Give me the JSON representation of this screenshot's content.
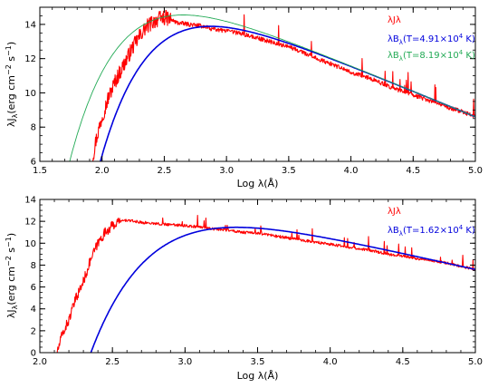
{
  "chart_data": [
    {
      "type": "line",
      "xlabel": "Log λ(Å)",
      "ylabel": "λJ",
      "ylabel_sub": "λ",
      "ylabel_units": "(erg cm",
      "ylabel_units_exp1": "−2",
      "ylabel_units_mid": " s",
      "ylabel_units_exp2": "−1",
      "ylabel_units_end": ")",
      "xlim": [
        1.5,
        5.0
      ],
      "ylim": [
        6,
        15
      ],
      "xticks": [
        1.5,
        2.0,
        2.5,
        3.0,
        3.5,
        4.0,
        4.5,
        5.0
      ],
      "xtick_labels": [
        "1.5",
        "2.0",
        "2.5",
        "3.0",
        "3.5",
        "4.0",
        "4.5",
        "5.0"
      ],
      "yticks": [
        6,
        8,
        10,
        12,
        14
      ],
      "ytick_labels": [
        "6",
        "8",
        "10",
        "12",
        "14"
      ],
      "grid": false,
      "legend_position": "top-right",
      "series": [
        {
          "name": "λJλ",
          "color": "#ff0000",
          "kind": "spectrum",
          "x": [
            1.92,
            1.95,
            2.0,
            2.05,
            2.1,
            2.15,
            2.2,
            2.25,
            2.3,
            2.35,
            2.4,
            2.45,
            2.5,
            2.55,
            2.6,
            2.7,
            2.8,
            2.9,
            3.0,
            3.1,
            3.2,
            3.3,
            3.4,
            3.5,
            3.6,
            3.7,
            3.8,
            3.9,
            4.0,
            4.1,
            4.2,
            4.3,
            4.4,
            4.5,
            4.6,
            4.7,
            4.8,
            4.9,
            5.0
          ],
          "y": [
            6.0,
            7.2,
            8.6,
            9.7,
            10.6,
            11.3,
            12.0,
            12.7,
            13.3,
            13.8,
            14.1,
            14.3,
            14.4,
            14.3,
            14.1,
            14.0,
            13.9,
            13.7,
            13.6,
            13.5,
            13.3,
            13.1,
            12.9,
            12.7,
            12.4,
            12.1,
            11.8,
            11.5,
            11.2,
            11.0,
            10.7,
            10.4,
            10.1,
            9.9,
            9.6,
            9.4,
            9.1,
            8.9,
            8.6
          ]
        },
        {
          "name": "λBλ(T=4.91×10⁴ K)",
          "label_main": "λB",
          "label_sub": "λ",
          "label_rest": "(T=4.91×10",
          "label_exp": "4",
          "label_end": " K)",
          "color": "#0000dd",
          "kind": "blackbody",
          "T": 49100,
          "x_start": 1.97
        },
        {
          "name": "λBλ(T=8.19×10⁴ K)",
          "label_main": "λB",
          "label_sub": "λ",
          "label_rest": "(T=8.19×10",
          "label_exp": "4",
          "label_end": " K)",
          "color": "#22aa55",
          "kind": "blackbody",
          "T": 81900,
          "x_start": 1.74
        }
      ]
    },
    {
      "type": "line",
      "xlabel": "Log λ(Å)",
      "ylabel": "λJ",
      "ylabel_sub": "λ",
      "ylabel_units": "(erg cm",
      "ylabel_units_exp1": "−2",
      "ylabel_units_mid": " s",
      "ylabel_units_exp2": "−1",
      "ylabel_units_end": ")",
      "xlim": [
        2.0,
        5.0
      ],
      "ylim": [
        0,
        14
      ],
      "xticks": [
        2.0,
        2.5,
        3.0,
        3.5,
        4.0,
        4.5,
        5.0
      ],
      "xtick_labels": [
        "2.0",
        "2.5",
        "3.0",
        "3.5",
        "4.0",
        "4.5",
        "5.0"
      ],
      "yticks": [
        0,
        2,
        4,
        6,
        8,
        10,
        12,
        14
      ],
      "ytick_labels": [
        "0",
        "2",
        "4",
        "6",
        "8",
        "10",
        "12",
        "14"
      ],
      "grid": false,
      "legend_position": "top-right",
      "series": [
        {
          "name": "λJλ",
          "color": "#ff0000",
          "kind": "spectrum",
          "x": [
            2.12,
            2.15,
            2.2,
            2.25,
            2.3,
            2.35,
            2.4,
            2.45,
            2.5,
            2.55,
            2.6,
            2.7,
            2.8,
            2.9,
            3.0,
            3.1,
            3.2,
            3.3,
            3.4,
            3.5,
            3.6,
            3.7,
            3.8,
            3.9,
            4.0,
            4.1,
            4.2,
            4.3,
            4.4,
            4.5,
            4.6,
            4.7,
            4.8,
            4.9,
            5.0
          ],
          "y": [
            0.0,
            1.5,
            3.0,
            5.0,
            6.5,
            8.5,
            10.0,
            11.0,
            11.6,
            12.0,
            12.1,
            11.9,
            11.8,
            11.7,
            11.6,
            11.5,
            11.3,
            11.2,
            11.0,
            10.9,
            10.7,
            10.5,
            10.3,
            10.1,
            9.9,
            9.7,
            9.5,
            9.3,
            9.0,
            8.8,
            8.6,
            8.4,
            8.2,
            7.9,
            7.6
          ]
        },
        {
          "name": "λBλ(T=1.62×10⁴ K)",
          "label_main": "λB",
          "label_sub": "λ",
          "label_rest": "(T=1.62×10",
          "label_exp": "4",
          "label_end": " K)",
          "color": "#0000dd",
          "kind": "blackbody",
          "T": 16200,
          "x_start": 2.34
        }
      ]
    }
  ]
}
